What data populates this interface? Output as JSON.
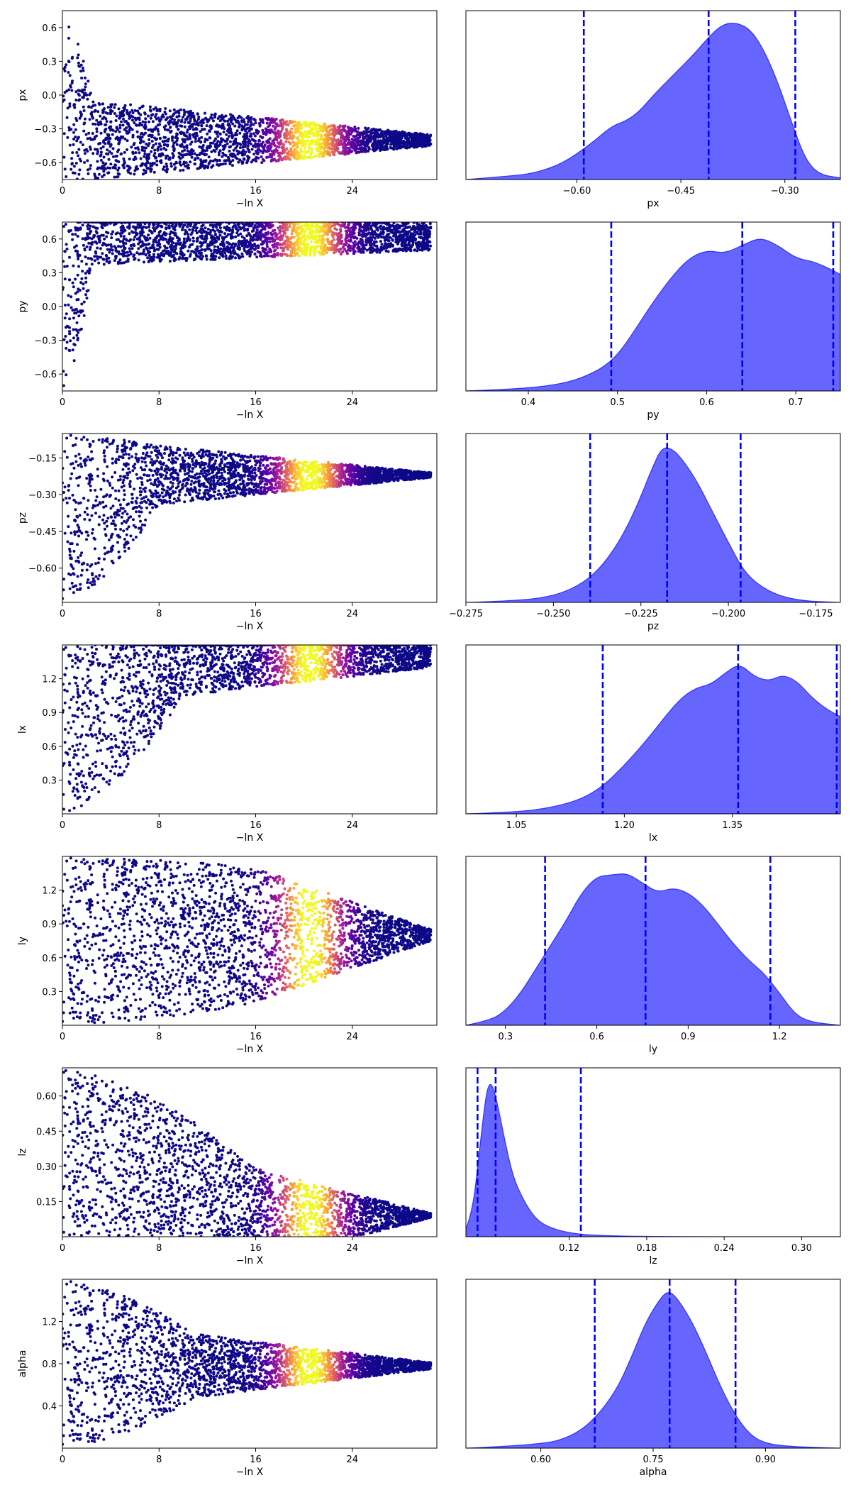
{
  "chart_data": [
    {
      "type": "scatter",
      "subplot": "trace",
      "parameter": "px",
      "xlabel": "−ln X",
      "ylabel": "px",
      "xlim": [
        0,
        31
      ],
      "ylim": [
        -0.75,
        0.75
      ],
      "xticks": [
        0,
        8,
        16,
        24
      ],
      "xtick_labels": [
        "0",
        "8",
        "16",
        "24"
      ],
      "yticks": [
        0.6,
        0.3,
        0.0,
        -0.3,
        -0.6
      ],
      "ytick_labels": [
        "0.6",
        "0.3",
        "0.0",
        "−0.3",
        "−0.6"
      ],
      "envelope": {
        "start_low": -0.75,
        "start_high": 0.75,
        "converge_at": 2.5,
        "center": -0.4,
        "halfwidth_mid": 0.35,
        "halfwidth_end": 0.05
      },
      "colormap": "plasma",
      "peak_weight_x": 20.5
    },
    {
      "type": "area",
      "subplot": "marginal",
      "parameter": "px",
      "xlabel": "px",
      "xlim": [
        -0.76,
        -0.22
      ],
      "xticks": [
        -0.6,
        -0.45,
        -0.3
      ],
      "xtick_labels": [
        "−0.60",
        "−0.45",
        "−0.30"
      ],
      "quantile_lines": [
        -0.59,
        -0.41,
        -0.285
      ],
      "density": {
        "x": [
          -0.76,
          -0.7,
          -0.66,
          -0.62,
          -0.58,
          -0.55,
          -0.53,
          -0.51,
          -0.49,
          -0.46,
          -0.43,
          -0.41,
          -0.39,
          -0.37,
          -0.35,
          -0.33,
          -0.31,
          -0.29,
          -0.27,
          -0.25,
          -0.22
        ],
        "y": [
          0.0,
          0.02,
          0.04,
          0.1,
          0.22,
          0.33,
          0.36,
          0.42,
          0.52,
          0.65,
          0.78,
          0.88,
          0.96,
          0.97,
          0.93,
          0.8,
          0.6,
          0.35,
          0.12,
          0.03,
          0.01
        ]
      },
      "color": "#0000ff"
    },
    {
      "type": "scatter",
      "subplot": "trace",
      "parameter": "py",
      "xlabel": "−ln X",
      "ylabel": "py",
      "xlim": [
        0,
        31
      ],
      "ylim": [
        -0.75,
        0.75
      ],
      "xticks": [
        0,
        8,
        16,
        24
      ],
      "xtick_labels": [
        "0",
        "8",
        "16",
        "24"
      ],
      "yticks": [
        0.6,
        0.3,
        0.0,
        -0.3,
        -0.6
      ],
      "ytick_labels": [
        "0.6",
        "0.3",
        "0.0",
        "−0.3",
        "−0.6"
      ],
      "envelope": {
        "start_low": -0.75,
        "start_high": 0.75,
        "converge_at": 2.5,
        "center": 0.62,
        "halfwidth_mid": 0.25,
        "halfwidth_end": 0.12,
        "clip_top": 0.75
      },
      "colormap": "plasma",
      "peak_weight_x": 20.5
    },
    {
      "type": "area",
      "subplot": "marginal",
      "parameter": "py",
      "xlabel": "py",
      "xlim": [
        0.33,
        0.75
      ],
      "xticks": [
        0.4,
        0.5,
        0.6,
        0.7
      ],
      "xtick_labels": [
        "0.4",
        "0.5",
        "0.6",
        "0.7"
      ],
      "quantile_lines": [
        0.493,
        0.64,
        0.742
      ],
      "density": {
        "x": [
          0.33,
          0.38,
          0.42,
          0.45,
          0.48,
          0.5,
          0.52,
          0.54,
          0.56,
          0.58,
          0.6,
          0.62,
          0.64,
          0.66,
          0.68,
          0.7,
          0.72,
          0.74,
          0.75
        ],
        "y": [
          0.0,
          0.01,
          0.03,
          0.06,
          0.13,
          0.22,
          0.38,
          0.55,
          0.7,
          0.82,
          0.87,
          0.85,
          0.9,
          0.95,
          0.9,
          0.82,
          0.8,
          0.75,
          0.72
        ]
      },
      "color": "#0000ff"
    },
    {
      "type": "scatter",
      "subplot": "trace",
      "parameter": "pz",
      "xlabel": "−ln X",
      "ylabel": "pz",
      "xlim": [
        0,
        31
      ],
      "ylim": [
        -0.74,
        -0.05
      ],
      "xticks": [
        0,
        8,
        16,
        24
      ],
      "xtick_labels": [
        "0",
        "8",
        "16",
        "24"
      ],
      "yticks": [
        -0.15,
        -0.3,
        -0.45,
        -0.6
      ],
      "ytick_labels": [
        "−0.15",
        "−0.30",
        "−0.45",
        "−0.60"
      ],
      "envelope": {
        "start_low": -0.74,
        "start_high": -0.05,
        "converge_at": 8,
        "center": -0.22,
        "halfwidth_mid": 0.12,
        "halfwidth_end": 0.01
      },
      "colormap": "plasma",
      "peak_weight_x": 20.5
    },
    {
      "type": "area",
      "subplot": "marginal",
      "parameter": "pz",
      "xlabel": "pz",
      "xlim": [
        -0.275,
        -0.168
      ],
      "xticks": [
        -0.275,
        -0.25,
        -0.225,
        -0.2,
        -0.175
      ],
      "xtick_labels": [
        "−0.275",
        "−0.250",
        "−0.225",
        "−0.200",
        "−0.175"
      ],
      "quantile_lines": [
        -0.2395,
        -0.2175,
        -0.1965
      ],
      "density": {
        "x": [
          -0.275,
          -0.26,
          -0.25,
          -0.243,
          -0.237,
          -0.231,
          -0.226,
          -0.222,
          -0.219,
          -0.216,
          -0.213,
          -0.209,
          -0.205,
          -0.2,
          -0.195,
          -0.188,
          -0.18,
          -0.168
        ],
        "y": [
          0.0,
          0.01,
          0.04,
          0.1,
          0.2,
          0.38,
          0.6,
          0.82,
          0.96,
          0.95,
          0.88,
          0.75,
          0.58,
          0.37,
          0.17,
          0.06,
          0.01,
          0.0
        ]
      },
      "color": "#0000ff"
    },
    {
      "type": "scatter",
      "subplot": "trace",
      "parameter": "lx",
      "xlabel": "−ln X",
      "ylabel": "lx",
      "xlim": [
        0,
        31
      ],
      "ylim": [
        0.0,
        1.5
      ],
      "xticks": [
        0,
        8,
        16,
        24
      ],
      "xtick_labels": [
        "0",
        "8",
        "16",
        "24"
      ],
      "yticks": [
        0.3,
        0.6,
        0.9,
        1.2
      ],
      "ytick_labels": [
        "0.3",
        "0.6",
        "0.9",
        "1.2"
      ],
      "envelope": {
        "start_low": 0.0,
        "start_high": 1.5,
        "converge_at": 10,
        "center": 1.4,
        "halfwidth_mid": 0.35,
        "halfwidth_end": 0.1,
        "clip_top": 1.5
      },
      "colormap": "plasma",
      "peak_weight_x": 20.5
    },
    {
      "type": "area",
      "subplot": "marginal",
      "parameter": "lx",
      "xlabel": "lx",
      "xlim": [
        0.98,
        1.5
      ],
      "xticks": [
        1.05,
        1.2,
        1.35
      ],
      "xtick_labels": [
        "1.05",
        "1.20",
        "1.35"
      ],
      "quantile_lines": [
        1.17,
        1.358,
        1.495
      ],
      "density": {
        "x": [
          0.98,
          1.05,
          1.1,
          1.14,
          1.17,
          1.2,
          1.23,
          1.26,
          1.28,
          1.3,
          1.32,
          1.34,
          1.36,
          1.38,
          1.4,
          1.42,
          1.44,
          1.46,
          1.48,
          1.5
        ],
        "y": [
          0.0,
          0.01,
          0.04,
          0.09,
          0.17,
          0.3,
          0.45,
          0.62,
          0.72,
          0.78,
          0.8,
          0.87,
          0.93,
          0.85,
          0.82,
          0.86,
          0.82,
          0.72,
          0.65,
          0.6
        ]
      },
      "color": "#0000ff"
    },
    {
      "type": "scatter",
      "subplot": "trace",
      "parameter": "ly",
      "xlabel": "−ln X",
      "ylabel": "ly",
      "xlim": [
        0,
        31
      ],
      "ylim": [
        0.0,
        1.5
      ],
      "xticks": [
        0,
        8,
        16,
        24
      ],
      "xtick_labels": [
        "0",
        "8",
        "16",
        "24"
      ],
      "yticks": [
        0.3,
        0.6,
        0.9,
        1.2
      ],
      "ytick_labels": [
        "0.3",
        "0.6",
        "0.9",
        "1.2"
      ],
      "envelope": {
        "start_low": 0.0,
        "start_high": 1.5,
        "converge_at": 16,
        "center": 0.8,
        "halfwidth_mid": 0.6,
        "halfwidth_end": 0.05
      },
      "colormap": "plasma",
      "peak_weight_x": 20.5
    },
    {
      "type": "area",
      "subplot": "marginal",
      "parameter": "ly",
      "xlabel": "ly",
      "xlim": [
        0.17,
        1.4
      ],
      "xticks": [
        0.3,
        0.6,
        0.9,
        1.2
      ],
      "xtick_labels": [
        "0.3",
        "0.6",
        "0.9",
        "1.2"
      ],
      "quantile_lines": [
        0.43,
        0.76,
        1.17
      ],
      "density": {
        "x": [
          0.17,
          0.25,
          0.3,
          0.35,
          0.4,
          0.45,
          0.5,
          0.55,
          0.6,
          0.65,
          0.7,
          0.75,
          0.8,
          0.85,
          0.9,
          0.95,
          1.0,
          1.05,
          1.1,
          1.15,
          1.2,
          1.25,
          1.3,
          1.4
        ],
        "y": [
          0.0,
          0.03,
          0.09,
          0.2,
          0.35,
          0.5,
          0.65,
          0.82,
          0.92,
          0.93,
          0.94,
          0.88,
          0.82,
          0.85,
          0.82,
          0.74,
          0.62,
          0.5,
          0.4,
          0.32,
          0.2,
          0.07,
          0.02,
          0.0
        ]
      },
      "color": "#0000ff"
    },
    {
      "type": "scatter",
      "subplot": "trace",
      "parameter": "lz",
      "xlabel": "−ln X",
      "ylabel": "lz",
      "xlim": [
        0,
        31
      ],
      "ylim": [
        0.0,
        0.72
      ],
      "xticks": [
        0,
        8,
        16,
        24
      ],
      "xtick_labels": [
        "0",
        "8",
        "16",
        "24"
      ],
      "yticks": [
        0.15,
        0.3,
        0.45,
        0.6
      ],
      "ytick_labels": [
        "0.15",
        "0.30",
        "0.45",
        "0.60"
      ],
      "envelope": {
        "start_low": 0.0,
        "start_high": 0.72,
        "converge_at": 16,
        "center": 0.09,
        "halfwidth_mid": 0.2,
        "halfwidth_end": 0.01,
        "clip_top": 0.72
      },
      "colormap": "plasma",
      "peak_weight_x": 20.5
    },
    {
      "type": "area",
      "subplot": "marginal",
      "parameter": "lz",
      "xlabel": "lz",
      "xlim": [
        0.04,
        0.33
      ],
      "xticks": [
        0.12,
        0.18,
        0.24,
        0.3
      ],
      "xtick_labels": [
        "0.12",
        "0.18",
        "0.24",
        "0.30"
      ],
      "quantile_lines": [
        0.049,
        0.063,
        0.129
      ],
      "density": {
        "x": [
          0.04,
          0.045,
          0.05,
          0.055,
          0.058,
          0.061,
          0.065,
          0.07,
          0.075,
          0.08,
          0.09,
          0.1,
          0.12,
          0.15,
          0.2,
          0.33
        ],
        "y": [
          0.05,
          0.15,
          0.5,
          0.85,
          0.95,
          0.93,
          0.8,
          0.6,
          0.42,
          0.3,
          0.15,
          0.07,
          0.02,
          0.005,
          0.0,
          0.0
        ]
      },
      "color": "#0000ff"
    },
    {
      "type": "scatter",
      "subplot": "trace",
      "parameter": "alpha",
      "xlabel": "−ln X",
      "ylabel": "alpha",
      "xlim": [
        0,
        31
      ],
      "ylim": [
        0.0,
        1.6
      ],
      "xticks": [
        0,
        8,
        16,
        24
      ],
      "xtick_labels": [
        "0",
        "8",
        "16",
        "24"
      ],
      "yticks": [
        0.4,
        0.8,
        1.2
      ],
      "ytick_labels": [
        "0.4",
        "0.8",
        "1.2"
      ],
      "envelope": {
        "start_low": 0.0,
        "start_high": 1.6,
        "converge_at": 11,
        "center": 0.78,
        "halfwidth_mid": 0.3,
        "halfwidth_end": 0.03
      },
      "colormap": "plasma",
      "peak_weight_x": 20.5
    },
    {
      "type": "area",
      "subplot": "marginal",
      "parameter": "alpha",
      "xlabel": "alpha",
      "xlim": [
        0.5,
        1.0
      ],
      "xticks": [
        0.6,
        0.75,
        0.9
      ],
      "xtick_labels": [
        "0.60",
        "0.75",
        "0.90"
      ],
      "quantile_lines": [
        0.672,
        0.772,
        0.86
      ],
      "density": {
        "x": [
          0.5,
          0.6,
          0.64,
          0.67,
          0.7,
          0.72,
          0.74,
          0.76,
          0.77,
          0.78,
          0.8,
          0.82,
          0.84,
          0.86,
          0.88,
          0.9,
          0.93,
          1.0
        ],
        "y": [
          0.0,
          0.02,
          0.07,
          0.17,
          0.35,
          0.55,
          0.78,
          0.93,
          0.97,
          0.94,
          0.8,
          0.6,
          0.38,
          0.2,
          0.08,
          0.03,
          0.01,
          0.0
        ]
      },
      "color": "#0000ff"
    }
  ]
}
